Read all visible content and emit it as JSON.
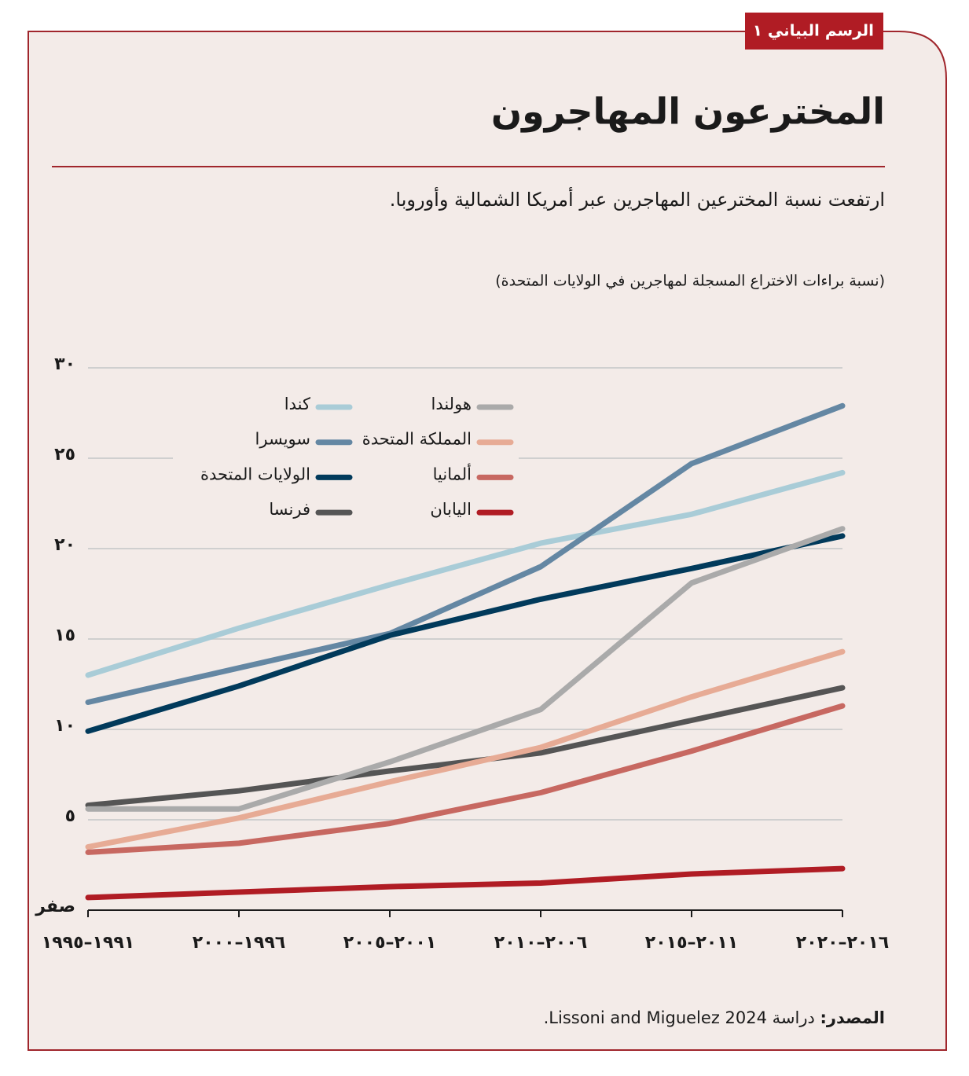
{
  "badge": "الرسم البياني ١",
  "chart_data": {
    "type": "line",
    "title": "المخترعون المهاجرون",
    "subtitle": "ارتفعت نسبة المخترعين المهاجرين عبر أمريكا الشمالية وأوروبا.",
    "y_label": "(نسبة براءات الاختراع المسجلة لمهاجرين في الولايات المتحدة)",
    "categories": [
      "١٩٩١–١٩٩٥",
      "١٩٩٦–٢٠٠٠",
      "٢٠٠١–٢٠٠٥",
      "٢٠٠٦–٢٠١٠",
      "٢٠١١–٢٠١٥",
      "٢٠١٦–٢٠٢٠"
    ],
    "ylim": [
      0,
      30
    ],
    "yticks": [
      {
        "value": 0,
        "label": "صفر"
      },
      {
        "value": 5,
        "label": "٥"
      },
      {
        "value": 10,
        "label": "١٠"
      },
      {
        "value": 15,
        "label": "١٥"
      },
      {
        "value": 20,
        "label": "٢٠"
      },
      {
        "value": 25,
        "label": "٢٥"
      },
      {
        "value": 30,
        "label": "٣٠"
      }
    ],
    "grid": true,
    "series": [
      {
        "name": "كندا",
        "color": "#a9ccd7",
        "values": [
          13.0,
          15.6,
          18.0,
          20.3,
          21.9,
          24.2
        ]
      },
      {
        "name": "سويسرا",
        "color": "#6487a3",
        "values": [
          11.5,
          13.4,
          15.3,
          19.0,
          24.7,
          27.9
        ]
      },
      {
        "name": "الولايات المتحدة",
        "color": "#013a5b",
        "values": [
          9.9,
          12.4,
          15.2,
          17.2,
          18.9,
          20.7
        ]
      },
      {
        "name": "فرنسا",
        "color": "#555555",
        "values": [
          5.8,
          6.6,
          7.7,
          8.7,
          10.5,
          12.3
        ]
      },
      {
        "name": "هولندا",
        "color": "#aaaaaa",
        "values": [
          5.6,
          5.6,
          8.2,
          11.1,
          18.1,
          21.1
        ]
      },
      {
        "name": "المملكة المتحدة",
        "color": "#e7ab95",
        "values": [
          3.5,
          5.1,
          7.1,
          9.0,
          11.8,
          14.3
        ]
      },
      {
        "name": "ألمانيا",
        "color": "#c76861",
        "values": [
          3.2,
          3.7,
          4.8,
          6.5,
          8.8,
          11.3
        ]
      },
      {
        "name": "اليابان",
        "color": "#b01c24",
        "values": [
          0.7,
          1.0,
          1.3,
          1.5,
          2.0,
          2.3
        ]
      }
    ]
  },
  "source": {
    "label": "المصدر:",
    "text": "دراسة Lissoni and Miguelez 2024."
  }
}
